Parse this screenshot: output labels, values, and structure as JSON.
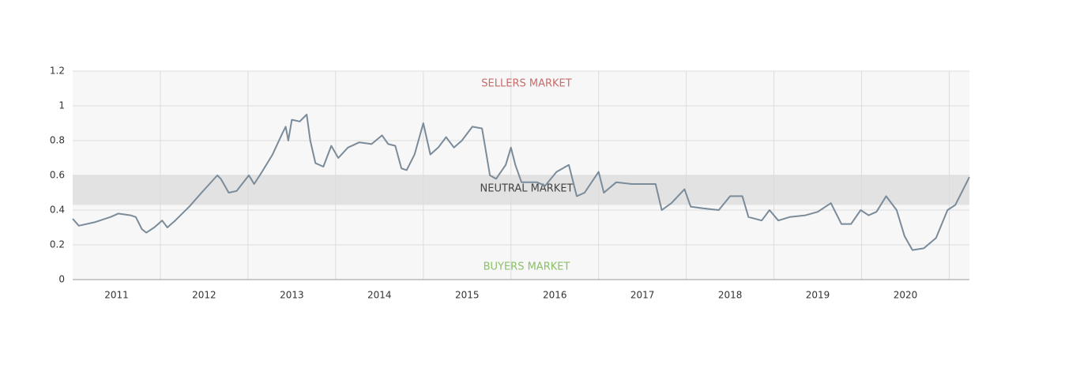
{
  "chart_data": {
    "type": "line",
    "annotations": [
      "SELLERS MARKET",
      "NEUTRAL MARKET",
      "BUYERS MARKET"
    ],
    "annotation_colors": [
      "#c96b6b",
      "#444444",
      "#8cbf6a"
    ],
    "neutral_band": [
      0.43,
      0.6
    ],
    "xlim": [
      2011,
      2021.23
    ],
    "xticks": [
      {
        "value": 2011.5,
        "label": "2011"
      },
      {
        "value": 2012.5,
        "label": "2012"
      },
      {
        "value": 2013.5,
        "label": "2013"
      },
      {
        "value": 2014.5,
        "label": "2014"
      },
      {
        "value": 2015.5,
        "label": "2015"
      },
      {
        "value": 2016.5,
        "label": "2016"
      },
      {
        "value": 2017.5,
        "label": "2017"
      },
      {
        "value": 2018.5,
        "label": "2018"
      },
      {
        "value": 2019.5,
        "label": "2019"
      },
      {
        "value": 2020.5,
        "label": "2020"
      }
    ],
    "xgrid": [
      2012,
      2013,
      2014,
      2015,
      2016,
      2017,
      2018,
      2019,
      2020,
      2021
    ],
    "ylim": [
      0,
      1.2
    ],
    "yticks": [
      0,
      0.2,
      0.4,
      0.6,
      0.8,
      1,
      1.2
    ],
    "grid": true,
    "series": [
      {
        "color": "#7a8b9a",
        "x": [
          2011.0,
          2011.07,
          2011.25,
          2011.43,
          2011.52,
          2011.66,
          2011.72,
          2011.79,
          2011.84,
          2011.93,
          2012.02,
          2012.08,
          2012.17,
          2012.33,
          2012.47,
          2012.56,
          2012.65,
          2012.69,
          2012.78,
          2012.87,
          2013.01,
          2013.07,
          2013.16,
          2013.28,
          2013.39,
          2013.43,
          2013.46,
          2013.5,
          2013.59,
          2013.67,
          2013.71,
          2013.77,
          2013.86,
          2013.95,
          2014.03,
          2014.14,
          2014.27,
          2014.41,
          2014.53,
          2014.6,
          2014.68,
          2014.75,
          2014.81,
          2014.9,
          2015.0,
          2015.08,
          2015.17,
          2015.26,
          2015.35,
          2015.44,
          2015.56,
          2015.67,
          2015.71,
          2015.76,
          2015.83,
          2015.94,
          2016.0,
          2016.05,
          2016.12,
          2016.3,
          2016.39,
          2016.52,
          2016.66,
          2016.75,
          2016.84,
          2017.0,
          2017.06,
          2017.2,
          2017.38,
          2017.65,
          2017.72,
          2017.83,
          2017.98,
          2018.05,
          2018.19,
          2018.37,
          2018.5,
          2018.64,
          2018.71,
          2018.86,
          2018.95,
          2019.05,
          2019.18,
          2019.36,
          2019.5,
          2019.65,
          2019.77,
          2019.88,
          2019.99,
          2020.08,
          2020.17,
          2020.28,
          2020.4,
          2020.49,
          2020.58,
          2020.71,
          2020.85,
          2020.98,
          2021.07,
          2021.23
        ],
        "values": [
          0.35,
          0.31,
          0.33,
          0.36,
          0.38,
          0.37,
          0.36,
          0.29,
          0.27,
          0.3,
          0.34,
          0.3,
          0.34,
          0.42,
          0.5,
          0.55,
          0.6,
          0.58,
          0.5,
          0.51,
          0.6,
          0.55,
          0.62,
          0.72,
          0.84,
          0.88,
          0.8,
          0.92,
          0.91,
          0.95,
          0.8,
          0.67,
          0.65,
          0.77,
          0.7,
          0.76,
          0.79,
          0.78,
          0.83,
          0.78,
          0.77,
          0.64,
          0.63,
          0.72,
          0.9,
          0.72,
          0.76,
          0.82,
          0.76,
          0.8,
          0.88,
          0.87,
          0.75,
          0.6,
          0.58,
          0.66,
          0.76,
          0.66,
          0.56,
          0.56,
          0.54,
          0.62,
          0.66,
          0.48,
          0.5,
          0.62,
          0.5,
          0.56,
          0.55,
          0.55,
          0.4,
          0.44,
          0.52,
          0.42,
          0.41,
          0.4,
          0.48,
          0.48,
          0.36,
          0.34,
          0.4,
          0.34,
          0.36,
          0.37,
          0.39,
          0.44,
          0.32,
          0.32,
          0.4,
          0.37,
          0.39,
          0.48,
          0.4,
          0.25,
          0.17,
          0.18,
          0.24,
          0.4,
          0.43,
          0.59
        ]
      }
    ]
  }
}
